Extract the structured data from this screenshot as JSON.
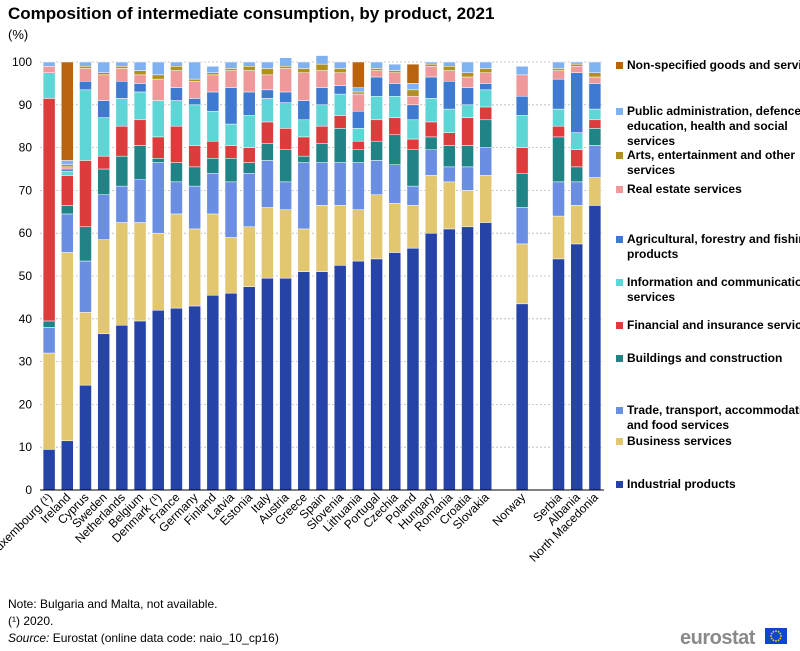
{
  "chart_data": {
    "type": "bar",
    "stacked": true,
    "title": "Composition of intermediate consumption, by product, 2021",
    "unit": "(%)",
    "ylim": [
      0,
      100
    ],
    "yticks": [
      0,
      10,
      20,
      30,
      40,
      50,
      60,
      70,
      80,
      90,
      100
    ],
    "categories": [
      "Luxembourg (¹)",
      "Ireland",
      "Cyprus",
      "Sweden",
      "Netherlands",
      "Belgium",
      "Denmark (¹)",
      "France",
      "Germany",
      "Finland",
      "Latvia",
      "Estonia",
      "Italy",
      "Austria",
      "Greece",
      "Spain",
      "Slovenia",
      "Lithuania",
      "Portugal",
      "Czechia",
      "Poland",
      "Hungary",
      "Romania",
      "Croatia",
      "Slovakia",
      "",
      "Norway",
      "",
      "Serbia",
      "Albania",
      "North Macedonia"
    ],
    "series": [
      {
        "name": "Industrial products",
        "color": "#2644a7",
        "values": [
          9.5,
          11.5,
          24.5,
          36.5,
          38.5,
          39.5,
          42,
          42.5,
          43,
          45.5,
          46,
          47.5,
          49.5,
          49.5,
          51,
          51,
          52.5,
          53.5,
          54,
          55.5,
          56.5,
          60,
          61,
          61.5,
          62.5,
          null,
          43.5,
          null,
          54,
          57.5,
          66.5
        ]
      },
      {
        "name": "Business services",
        "color": "#e2c670",
        "values": [
          22.5,
          44,
          17,
          22,
          24,
          23,
          18,
          22,
          18,
          19,
          13,
          14,
          16.5,
          16,
          10,
          15.5,
          14,
          12,
          15,
          11.5,
          10,
          13.5,
          11,
          8.5,
          11,
          null,
          14,
          null,
          10,
          9,
          6.5
        ]
      },
      {
        "name": "Trade, transport, accommodation and food services",
        "color": "#6a8ee2",
        "values": [
          6,
          9,
          12,
          10.5,
          8.5,
          10,
          16.5,
          7.5,
          10,
          9.5,
          13,
          12.5,
          11,
          6.5,
          15.5,
          10,
          10,
          11,
          8,
          9,
          4.5,
          6,
          3.5,
          5.5,
          6.5,
          null,
          8.5,
          null,
          8,
          5.5,
          7.5
        ]
      },
      {
        "name": "Buildings and construction",
        "color": "#208486",
        "values": [
          1.5,
          2,
          8,
          6,
          7,
          8,
          1,
          4.5,
          4.5,
          3.5,
          5.5,
          2.5,
          4,
          7.5,
          1.5,
          4.5,
          8,
          3,
          4.5,
          7,
          8.5,
          3,
          5,
          5,
          6.5,
          null,
          8,
          null,
          10.5,
          3.5,
          4
        ]
      },
      {
        "name": "Financial and insurance services",
        "color": "#dd3c3d",
        "values": [
          52,
          7,
          15.5,
          3,
          7,
          6,
          5,
          8.5,
          5,
          4,
          3,
          3.5,
          5,
          5,
          4.5,
          4,
          3,
          2,
          5,
          4,
          2.5,
          3.5,
          3,
          6.5,
          3,
          null,
          6,
          null,
          2.5,
          4,
          2
        ]
      },
      {
        "name": "Information and communication services",
        "color": "#5fd6d6",
        "values": [
          6,
          1,
          16.5,
          9,
          6.5,
          6.5,
          8.5,
          6,
          9.5,
          7,
          5,
          7.5,
          5.5,
          6,
          4,
          5,
          5,
          3,
          5.5,
          5,
          4.5,
          5.5,
          5.5,
          3,
          4,
          null,
          7.5,
          null,
          4,
          4,
          2.5
        ]
      },
      {
        "name": "Agricultural, forestry and fishing products",
        "color": "#3e7ad0",
        "values": [
          0,
          0.5,
          2,
          4,
          4,
          2,
          0,
          3,
          1.5,
          4.5,
          8.5,
          5.5,
          2,
          2.5,
          4.5,
          4,
          2,
          4,
          4.5,
          3,
          3.5,
          5,
          6.5,
          4,
          1.5,
          null,
          4.5,
          null,
          7,
          14,
          6
        ]
      },
      {
        "name": "Real estate services",
        "color": "#f0999b",
        "values": [
          1.5,
          0.5,
          3,
          6,
          3,
          2,
          5,
          4,
          4,
          4,
          4,
          5,
          3.5,
          5.5,
          6.5,
          4,
          3,
          4,
          1.5,
          2.5,
          2,
          2.5,
          2.5,
          2.5,
          2.5,
          null,
          5,
          null,
          2,
          1.5,
          1.5
        ]
      },
      {
        "name": "Arts, entertainment and other services",
        "color": "#b09120",
        "values": [
          0,
          0.5,
          0.5,
          0.5,
          0.5,
          1,
          1,
          1,
          0.5,
          0.5,
          0.5,
          1,
          1.5,
          0.5,
          1,
          1.5,
          1,
          0.5,
          0.5,
          0.5,
          1.5,
          0.5,
          1,
          1,
          1,
          null,
          0,
          null,
          0.5,
          0.5,
          1
        ]
      },
      {
        "name": "Public administration, defence, education, health and social services",
        "color": "#7fb2f0",
        "values": [
          1,
          1,
          1,
          2.5,
          1,
          2,
          3,
          1,
          4,
          1.5,
          1.5,
          1,
          1.5,
          2,
          1.5,
          2,
          1.5,
          1,
          1.5,
          1.5,
          1.5,
          0.5,
          1,
          2.5,
          1.5,
          null,
          2,
          null,
          1.5,
          0.5,
          2.5
        ]
      },
      {
        "name": "Non-specified goods and services",
        "color": "#b9630e",
        "values": [
          0,
          23,
          0,
          0,
          0,
          0,
          0,
          0,
          0,
          0,
          0,
          0,
          0,
          0,
          0,
          0,
          0,
          6,
          0,
          0,
          4.5,
          0,
          0,
          0,
          0,
          null,
          0,
          null,
          0,
          0,
          0
        ]
      }
    ]
  },
  "notes": {
    "note": "Note: Bulgaria and Malta, not available.",
    "footnote": "(¹) 2020.",
    "source_label": "Source:",
    "source_text": " Eurostat (online data code: naio_10_cp16)"
  },
  "logo": {
    "text": "eurostat"
  }
}
